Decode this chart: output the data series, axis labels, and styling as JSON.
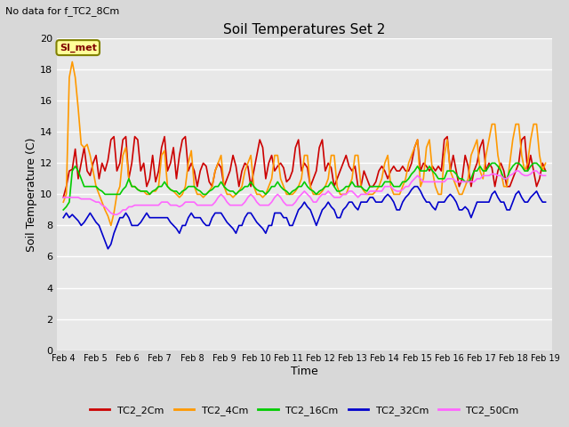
{
  "title": "Soil Temperatures Set 2",
  "subtitle": "No data for f_TC2_8Cm",
  "xlabel": "Time",
  "ylabel": "Soil Temperature (C)",
  "ylim": [
    0,
    20
  ],
  "yticks": [
    0,
    2,
    4,
    6,
    8,
    10,
    12,
    14,
    16,
    18,
    20
  ],
  "bg_color": "#d8d8d8",
  "plot_bg_color": "#e8e8e8",
  "grid_color": "#ffffff",
  "annotation_text": "SI_met",
  "annotation_bg": "#ffff99",
  "annotation_border": "#808000",
  "series": {
    "TC2_2Cm": {
      "color": "#cc0000",
      "lw": 1.2
    },
    "TC2_4Cm": {
      "color": "#ff9900",
      "lw": 1.2
    },
    "TC2_16Cm": {
      "color": "#00cc00",
      "lw": 1.2
    },
    "TC2_32Cm": {
      "color": "#0000cc",
      "lw": 1.2
    },
    "TC2_50Cm": {
      "color": "#ff66ff",
      "lw": 1.2
    }
  },
  "xtick_labels": [
    "Feb 4",
    "Feb 5",
    "Feb 6",
    "Feb 7",
    "Feb 8",
    "Feb 9",
    "Feb 10",
    "Feb 11",
    "Feb 12",
    "Feb 13",
    "Feb 14",
    "Feb 15",
    "Feb 16",
    "Feb 17",
    "Feb 18",
    "Feb 19"
  ],
  "TC2_2Cm": [
    9.8,
    10.5,
    11.5,
    11.6,
    12.9,
    11.0,
    12.0,
    13.0,
    11.5,
    11.2,
    12.0,
    12.5,
    11.0,
    12.0,
    11.5,
    12.2,
    13.5,
    13.7,
    11.5,
    12.0,
    13.5,
    13.7,
    11.0,
    12.0,
    13.7,
    13.5,
    11.5,
    12.0,
    10.5,
    11.0,
    12.5,
    10.8,
    11.5,
    13.0,
    13.7,
    11.5,
    12.0,
    13.0,
    11.0,
    12.5,
    13.5,
    13.7,
    11.5,
    12.0,
    11.5,
    10.5,
    11.5,
    12.0,
    11.8,
    10.8,
    10.5,
    11.5,
    12.0,
    11.7,
    10.5,
    11.0,
    11.5,
    12.5,
    11.8,
    10.5,
    11.5,
    12.0,
    11.8,
    10.5,
    11.5,
    12.5,
    13.5,
    13.0,
    11.0,
    12.0,
    12.5,
    11.5,
    11.8,
    12.0,
    11.7,
    10.8,
    11.0,
    11.5,
    13.0,
    13.5,
    11.5,
    12.0,
    11.7,
    10.5,
    11.0,
    11.5,
    13.0,
    13.5,
    11.5,
    12.0,
    11.7,
    10.5,
    11.0,
    11.5,
    12.0,
    12.5,
    11.8,
    11.5,
    11.8,
    10.5,
    10.5,
    11.5,
    11.0,
    10.5,
    10.5,
    10.8,
    11.5,
    11.8,
    11.5,
    11.0,
    11.5,
    11.8,
    11.5,
    11.5,
    11.8,
    11.5,
    11.5,
    12.0,
    13.0,
    13.5,
    11.5,
    12.0,
    11.8,
    11.5,
    11.8,
    11.5,
    11.8,
    11.5,
    13.5,
    13.7,
    11.5,
    12.5,
    11.5,
    10.5,
    11.0,
    12.5,
    11.8,
    10.5,
    11.5,
    12.0,
    13.0,
    13.5,
    11.5,
    12.0,
    11.7,
    10.5,
    11.5,
    12.0,
    11.5,
    10.5,
    10.5,
    11.0,
    11.5,
    12.0,
    13.5,
    13.7,
    11.5,
    12.5,
    11.5,
    10.5,
    11.0,
    12.0,
    11.5
  ],
  "TC2_4Cm": [
    9.5,
    10.0,
    17.5,
    18.5,
    17.5,
    15.5,
    13.2,
    13.0,
    13.2,
    12.5,
    11.5,
    10.5,
    10.0,
    9.5,
    9.0,
    8.6,
    8.0,
    8.8,
    10.0,
    10.5,
    12.5,
    13.0,
    11.0,
    10.5,
    10.5,
    10.3,
    10.2,
    10.2,
    10.0,
    10.0,
    10.2,
    10.2,
    10.5,
    12.5,
    12.8,
    10.5,
    10.3,
    10.2,
    10.0,
    9.8,
    10.0,
    10.5,
    12.0,
    12.8,
    10.5,
    10.0,
    10.0,
    9.8,
    10.0,
    10.2,
    10.5,
    11.5,
    12.0,
    12.5,
    10.5,
    10.0,
    10.0,
    9.8,
    10.0,
    10.2,
    10.5,
    11.5,
    12.0,
    12.5,
    10.5,
    10.0,
    10.0,
    9.8,
    10.0,
    10.5,
    11.0,
    12.5,
    12.5,
    11.0,
    10.5,
    10.0,
    10.0,
    10.0,
    10.2,
    10.5,
    11.0,
    12.5,
    12.5,
    10.5,
    10.0,
    10.0,
    10.0,
    10.2,
    10.5,
    11.0,
    12.5,
    12.5,
    10.5,
    10.0,
    10.0,
    10.0,
    10.5,
    11.0,
    12.5,
    12.5,
    10.5,
    10.2,
    10.0,
    10.0,
    10.0,
    10.2,
    10.5,
    11.0,
    12.0,
    12.5,
    10.5,
    10.0,
    10.0,
    10.0,
    10.5,
    11.0,
    12.0,
    12.5,
    13.0,
    13.5,
    10.5,
    11.0,
    13.0,
    13.5,
    11.5,
    10.5,
    10.0,
    10.0,
    12.5,
    13.5,
    11.5,
    11.0,
    10.5,
    10.0,
    10.0,
    10.5,
    11.0,
    12.5,
    13.0,
    13.5,
    11.5,
    11.0,
    12.5,
    13.5,
    14.5,
    14.5,
    12.5,
    11.5,
    10.5,
    10.5,
    12.0,
    13.5,
    14.5,
    14.5,
    12.5,
    11.5,
    12.0,
    13.5,
    14.5,
    14.5,
    12.5,
    11.5,
    12.0
  ],
  "TC2_16Cm": [
    9.0,
    9.2,
    9.5,
    11.5,
    11.8,
    11.5,
    11.0,
    10.5,
    10.5,
    10.5,
    10.5,
    10.5,
    10.3,
    10.2,
    10.0,
    10.0,
    10.0,
    10.0,
    10.0,
    10.0,
    10.3,
    10.5,
    11.0,
    10.5,
    10.5,
    10.3,
    10.2,
    10.2,
    10.2,
    10.0,
    10.2,
    10.3,
    10.5,
    10.5,
    10.8,
    10.5,
    10.3,
    10.2,
    10.2,
    10.0,
    10.2,
    10.3,
    10.5,
    10.5,
    10.5,
    10.3,
    10.2,
    10.0,
    10.0,
    10.2,
    10.3,
    10.5,
    10.5,
    10.8,
    10.5,
    10.3,
    10.2,
    10.2,
    10.0,
    10.2,
    10.3,
    10.5,
    10.5,
    10.8,
    10.5,
    10.3,
    10.2,
    10.2,
    10.0,
    10.2,
    10.5,
    10.5,
    10.8,
    10.5,
    10.3,
    10.2,
    10.0,
    10.2,
    10.3,
    10.5,
    10.5,
    10.8,
    10.5,
    10.3,
    10.2,
    10.0,
    10.2,
    10.3,
    10.5,
    10.5,
    10.8,
    10.5,
    10.2,
    10.2,
    10.3,
    10.5,
    10.5,
    10.8,
    10.5,
    10.5,
    10.5,
    10.3,
    10.2,
    10.5,
    10.5,
    10.5,
    10.5,
    10.5,
    10.8,
    10.8,
    10.8,
    10.5,
    10.5,
    10.5,
    10.8,
    10.8,
    11.0,
    11.3,
    11.5,
    11.8,
    11.5,
    11.5,
    11.5,
    11.8,
    11.5,
    11.3,
    11.0,
    11.0,
    11.0,
    11.5,
    11.5,
    11.5,
    11.3,
    11.0,
    11.0,
    10.8,
    10.8,
    11.0,
    11.5,
    11.5,
    11.8,
    11.5,
    11.5,
    11.8,
    12.0,
    12.0,
    11.8,
    11.5,
    11.0,
    11.0,
    11.5,
    11.8,
    12.0,
    12.0,
    11.8,
    11.5,
    11.5,
    11.8,
    12.0,
    12.0,
    11.8,
    11.5,
    11.5
  ],
  "TC2_32Cm": [
    8.5,
    8.8,
    8.5,
    8.7,
    8.5,
    8.3,
    8.0,
    8.2,
    8.5,
    8.8,
    8.5,
    8.2,
    8.0,
    7.5,
    7.0,
    6.5,
    6.8,
    7.5,
    8.0,
    8.5,
    8.5,
    8.8,
    8.5,
    8.0,
    8.0,
    8.0,
    8.2,
    8.5,
    8.8,
    8.5,
    8.5,
    8.5,
    8.5,
    8.5,
    8.5,
    8.5,
    8.2,
    8.0,
    7.8,
    7.5,
    8.0,
    8.0,
    8.5,
    8.8,
    8.5,
    8.5,
    8.5,
    8.2,
    8.0,
    8.0,
    8.5,
    8.8,
    8.8,
    8.8,
    8.5,
    8.2,
    8.0,
    7.8,
    7.5,
    8.0,
    8.0,
    8.5,
    8.8,
    8.8,
    8.5,
    8.2,
    8.0,
    7.8,
    7.5,
    8.0,
    8.0,
    8.8,
    8.8,
    8.8,
    8.5,
    8.5,
    8.0,
    8.0,
    8.5,
    9.0,
    9.2,
    9.5,
    9.2,
    9.0,
    8.5,
    8.0,
    8.5,
    9.0,
    9.2,
    9.5,
    9.2,
    9.0,
    8.5,
    8.5,
    9.0,
    9.2,
    9.5,
    9.5,
    9.2,
    9.0,
    9.5,
    9.5,
    9.5,
    9.8,
    9.8,
    9.5,
    9.5,
    9.5,
    9.8,
    10.0,
    9.8,
    9.5,
    9.0,
    9.0,
    9.5,
    9.8,
    10.0,
    10.3,
    10.5,
    10.5,
    10.2,
    9.8,
    9.5,
    9.5,
    9.2,
    9.0,
    9.5,
    9.5,
    9.5,
    9.8,
    10.0,
    9.8,
    9.5,
    9.0,
    9.0,
    9.2,
    9.0,
    8.5,
    9.0,
    9.5,
    9.5,
    9.5,
    9.5,
    9.5,
    10.0,
    10.2,
    9.8,
    9.5,
    9.5,
    9.0,
    9.0,
    9.5,
    10.0,
    10.2,
    9.8,
    9.5,
    9.5,
    9.8,
    10.0,
    10.2,
    9.8,
    9.5,
    9.5
  ],
  "TC2_50Cm": [
    9.8,
    9.8,
    9.8,
    9.8,
    9.8,
    9.8,
    9.7,
    9.7,
    9.7,
    9.7,
    9.6,
    9.5,
    9.5,
    9.3,
    9.2,
    9.0,
    8.8,
    8.7,
    8.7,
    8.8,
    9.0,
    9.0,
    9.2,
    9.2,
    9.3,
    9.3,
    9.3,
    9.3,
    9.3,
    9.3,
    9.3,
    9.3,
    9.3,
    9.5,
    9.5,
    9.5,
    9.3,
    9.3,
    9.3,
    9.2,
    9.3,
    9.5,
    9.5,
    9.5,
    9.5,
    9.3,
    9.3,
    9.3,
    9.3,
    9.3,
    9.3,
    9.5,
    9.8,
    10.0,
    9.8,
    9.5,
    9.3,
    9.3,
    9.3,
    9.3,
    9.3,
    9.5,
    9.8,
    10.0,
    9.8,
    9.5,
    9.3,
    9.3,
    9.3,
    9.3,
    9.5,
    9.8,
    10.0,
    9.8,
    9.5,
    9.3,
    9.3,
    9.3,
    9.5,
    9.8,
    10.0,
    10.2,
    10.0,
    9.8,
    9.5,
    9.5,
    9.8,
    10.0,
    10.0,
    10.2,
    10.0,
    9.8,
    9.8,
    9.8,
    10.0,
    10.0,
    10.2,
    10.2,
    10.0,
    9.8,
    10.0,
    10.0,
    10.0,
    10.2,
    10.2,
    10.2,
    10.2,
    10.2,
    10.5,
    10.5,
    10.5,
    10.3,
    10.2,
    10.2,
    10.3,
    10.5,
    10.5,
    10.8,
    11.0,
    11.2,
    11.0,
    10.8,
    10.8,
    10.8,
    10.8,
    10.8,
    10.8,
    10.8,
    10.8,
    11.0,
    11.0,
    11.0,
    10.8,
    10.8,
    10.8,
    10.8,
    10.8,
    10.8,
    10.8,
    11.0,
    11.0,
    11.2,
    11.2,
    11.2,
    11.3,
    11.3,
    11.2,
    11.2,
    11.0,
    11.0,
    11.2,
    11.3,
    11.5,
    11.5,
    11.3,
    11.2,
    11.2,
    11.3,
    11.5,
    11.5,
    11.3,
    11.2,
    11.2
  ]
}
